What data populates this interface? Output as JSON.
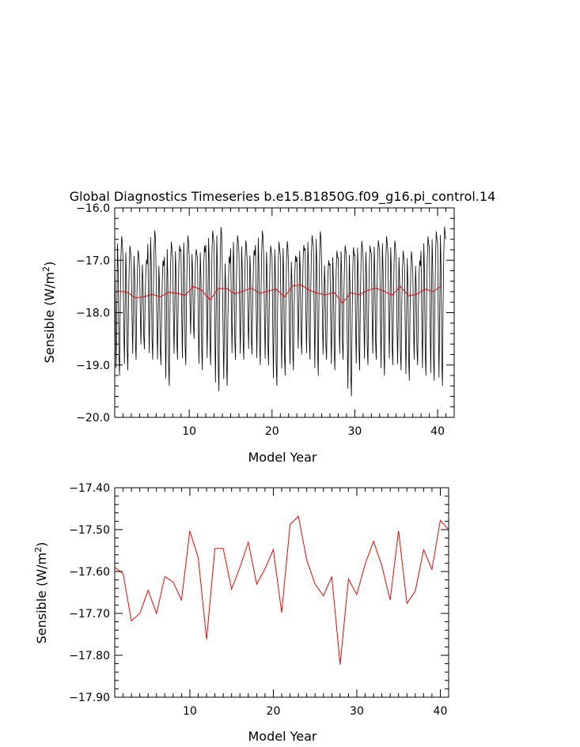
{
  "chart_data": [
    {
      "type": "line",
      "title": "Global Diagnostics Timeseries b.e15.B1850G.f09_g16.pi_control.14",
      "xlabel": "Model Year",
      "ylabel": "Sensible (W/m",
      "ylabel_sup": "2",
      "ylabel_close": ")",
      "xlim": [
        1,
        42
      ],
      "ylim": [
        -20.0,
        -16.0
      ],
      "xticks": [
        10,
        20,
        30,
        40
      ],
      "yticks": [
        -20.0,
        -19.0,
        -18.0,
        -17.0,
        -16.0
      ],
      "ytick_labels": [
        "−20.0",
        "−19.0",
        "−18.0",
        "−17.0",
        "−16.0"
      ],
      "grid": false,
      "series": [
        {
          "color": "#000000",
          "kind": "monthly",
          "annual_peaks": [
            [
              -16.4,
              -19.2
            ],
            [
              -16.6,
              -19.1
            ],
            [
              -16.7,
              -18.9
            ],
            [
              -16.9,
              -18.7
            ],
            [
              -16.3,
              -18.9
            ],
            [
              -16.9,
              -19.0
            ],
            [
              -16.5,
              -19.4
            ],
            [
              -16.6,
              -18.9
            ],
            [
              -16.4,
              -19.0
            ],
            [
              -16.7,
              -18.5
            ],
            [
              -16.6,
              -19.1
            ],
            [
              -16.3,
              -19.0
            ],
            [
              -16.2,
              -19.5
            ],
            [
              -16.8,
              -19.4
            ],
            [
              -16.4,
              -18.9
            ],
            [
              -16.5,
              -18.9
            ],
            [
              -16.7,
              -18.8
            ],
            [
              -16.3,
              -19.0
            ],
            [
              -16.6,
              -19.0
            ],
            [
              -16.5,
              -19.4
            ],
            [
              -16.5,
              -19.2
            ],
            [
              -16.8,
              -19.1
            ],
            [
              -16.6,
              -18.8
            ],
            [
              -16.4,
              -18.9
            ],
            [
              -16.3,
              -19.2
            ],
            [
              -16.9,
              -18.9
            ],
            [
              -16.7,
              -19.1
            ],
            [
              -16.6,
              -18.9
            ],
            [
              -16.6,
              -19.6
            ],
            [
              -16.5,
              -19.1
            ],
            [
              -16.6,
              -19.0
            ],
            [
              -16.5,
              -18.9
            ],
            [
              -16.4,
              -19.2
            ],
            [
              -16.5,
              -19.0
            ],
            [
              -16.7,
              -19.1
            ],
            [
              -16.7,
              -19.3
            ],
            [
              -16.9,
              -19.0
            ],
            [
              -16.4,
              -19.2
            ],
            [
              -16.3,
              -19.3
            ],
            [
              -16.2,
              -19.4
            ]
          ]
        },
        {
          "color": "#ff0000",
          "kind": "annual",
          "x": [
            1.5,
            2.5,
            3.5,
            4.5,
            5.5,
            6.5,
            7.5,
            8.5,
            9.5,
            10.5,
            11.5,
            12.5,
            13.5,
            14.5,
            15.5,
            16.5,
            17.5,
            18.5,
            19.5,
            20.5,
            21.5,
            22.5,
            23.5,
            24.5,
            25.5,
            26.5,
            27.5,
            28.5,
            29.5,
            30.5,
            31.5,
            32.5,
            33.5,
            34.5,
            35.5,
            36.5,
            37.5,
            38.5,
            39.5,
            40.5
          ],
          "values": [
            -17.59,
            -17.61,
            -17.72,
            -17.7,
            -17.65,
            -17.7,
            -17.61,
            -17.63,
            -17.67,
            -17.5,
            -17.57,
            -17.76,
            -17.54,
            -17.54,
            -17.64,
            -17.59,
            -17.53,
            -17.63,
            -17.59,
            -17.55,
            -17.7,
            -17.49,
            -17.47,
            -17.57,
            -17.63,
            -17.66,
            -17.61,
            -17.82,
            -17.62,
            -17.66,
            -17.58,
            -17.53,
            -17.59,
            -17.67,
            -17.5,
            -17.68,
            -17.65,
            -17.55,
            -17.6,
            -17.48
          ]
        }
      ]
    },
    {
      "type": "line",
      "xlabel": "Model Year",
      "ylabel": "Sensible (W/m",
      "ylabel_sup": "2",
      "ylabel_close": ")",
      "xlim": [
        1,
        41
      ],
      "ylim": [
        -17.9,
        -17.4
      ],
      "xticks": [
        10,
        20,
        30,
        40
      ],
      "yticks": [
        -17.9,
        -17.8,
        -17.7,
        -17.6,
        -17.5,
        -17.4
      ],
      "ytick_labels": [
        "−17.90",
        "−17.80",
        "−17.70",
        "−17.60",
        "−17.50",
        "−17.40"
      ],
      "grid": false,
      "series": [
        {
          "color": "#ff0000",
          "x": [
            1,
            2,
            3,
            4,
            5,
            6,
            7,
            8,
            9,
            10,
            11,
            12,
            13,
            14,
            15,
            16,
            17,
            18,
            19,
            20,
            21,
            22,
            23,
            24,
            25,
            26,
            27,
            28,
            29,
            30,
            31,
            32,
            33,
            34,
            35,
            36,
            37,
            38,
            39,
            40,
            41
          ],
          "values": [
            -17.59,
            -17.605,
            -17.718,
            -17.7,
            -17.645,
            -17.7,
            -17.612,
            -17.625,
            -17.668,
            -17.503,
            -17.567,
            -17.762,
            -17.545,
            -17.545,
            -17.642,
            -17.59,
            -17.53,
            -17.63,
            -17.594,
            -17.548,
            -17.698,
            -17.488,
            -17.468,
            -17.572,
            -17.63,
            -17.658,
            -17.612,
            -17.822,
            -17.618,
            -17.655,
            -17.582,
            -17.528,
            -17.586,
            -17.668,
            -17.503,
            -17.676,
            -17.647,
            -17.548,
            -17.595,
            -17.478,
            -17.5
          ]
        }
      ]
    }
  ]
}
